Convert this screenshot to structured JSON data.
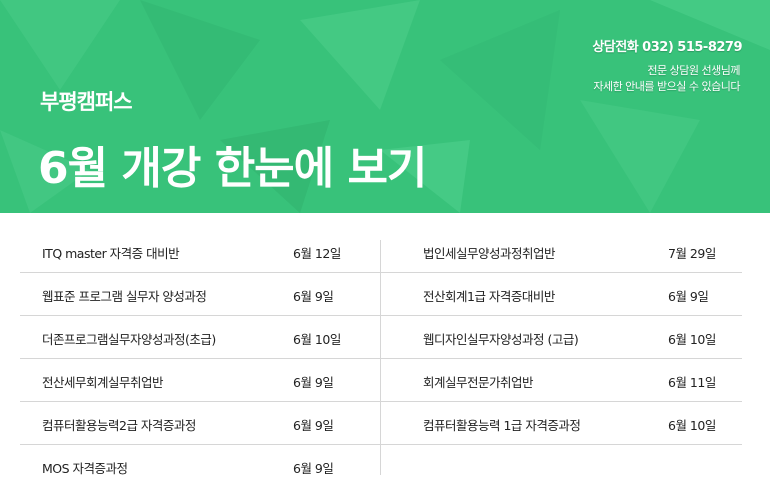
{
  "banner": {
    "campus": "부평캠퍼스",
    "title": "6월  개강 한눈에 보기",
    "phone": "상담전화 032) 515-8279",
    "desc_line1": "전문 상담원 선생님께",
    "desc_line2": "자세한 안내를 받으실 수 있습니다",
    "color": "#38c27a"
  },
  "left_courses": [
    {
      "name": "ITQ master 자격증 대비반",
      "date": "6월 12일"
    },
    {
      "name": "웹표준 프로그램 실무자 양성과정",
      "date": "6월 9일"
    },
    {
      "name": "더존프로그램실무자양성과정(초급)",
      "date": "6월 10일"
    },
    {
      "name": "전산세무회계실무취업반",
      "date": "6월 9일"
    },
    {
      "name": "컴퓨터활용능력2급 자격증과정",
      "date": "6월 9일"
    },
    {
      "name": "MOS 자격증과정",
      "date": "6월 9일"
    }
  ],
  "right_courses": [
    {
      "name": "법인세실무양성과정취업반",
      "date": "7월 29일"
    },
    {
      "name": "전산회계1급 자격증대비반",
      "date": "6월 9일"
    },
    {
      "name": "웹디자인실무자양성과정 (고급)",
      "date": "6월 10일"
    },
    {
      "name": "회계실무전문가취업반",
      "date": "6월 11일"
    },
    {
      "name": "컴퓨터활용능력 1급 자격증과정",
      "date": "6월 10일"
    }
  ]
}
